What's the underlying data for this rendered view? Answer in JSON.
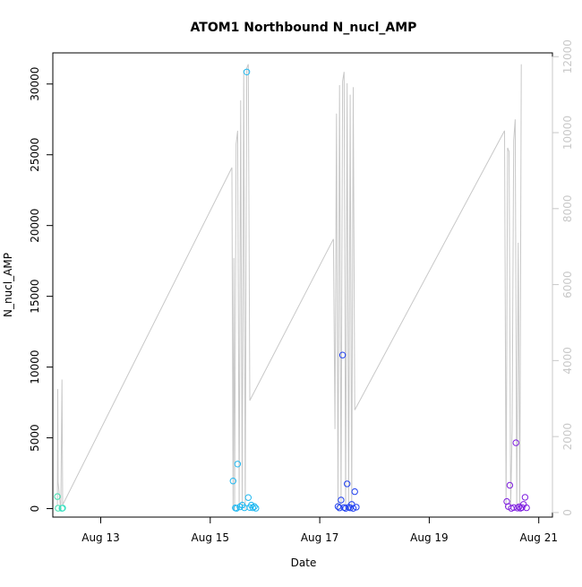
{
  "chart_data": {
    "type": "scatter",
    "title": "ATOM1 Northbound N_nucl_AMP",
    "xlabel": "Date",
    "ylabel": "N_nucl_AMP",
    "x_axis": {
      "type": "date",
      "range": [
        "2024-08-12T03:00",
        "2024-08-21T06:00"
      ],
      "ticks": [
        {
          "date": "2024-08-13",
          "label": "Aug 13"
        },
        {
          "date": "2024-08-15",
          "label": "Aug 15"
        },
        {
          "date": "2024-08-17",
          "label": "Aug 17"
        },
        {
          "date": "2024-08-19",
          "label": "Aug 19"
        },
        {
          "date": "2024-08-21",
          "label": "Aug 21"
        }
      ]
    },
    "y_axis": {
      "range": [
        -600,
        32200
      ],
      "ticks": [
        0,
        5000,
        10000,
        15000,
        20000,
        25000,
        30000
      ]
    },
    "y2_axis": {
      "range": [
        -120,
        12100
      ],
      "ticks": [
        0,
        2000,
        4000,
        6000,
        8000,
        10000,
        12000
      ],
      "color": "#c8c8c8"
    },
    "grid": false,
    "colors": {
      "line": "#c8c8c8",
      "axis": "#000000"
    },
    "series": [
      {
        "kind": "points",
        "color_by_time": true,
        "points": [
          {
            "t": "2024-08-12T05:00",
            "y": 850,
            "color": "#40e0b0"
          },
          {
            "t": "2024-08-12T05:20",
            "y": 30,
            "color": "#40e0b0"
          },
          {
            "t": "2024-08-12T07:00",
            "y": 20,
            "color": "#38e0c0"
          },
          {
            "t": "2024-08-12T07:20",
            "y": 40,
            "color": "#38e0c0"
          },
          {
            "t": "2024-08-15T10:00",
            "y": 1950,
            "color": "#20b8f0"
          },
          {
            "t": "2024-08-15T11:00",
            "y": 50,
            "color": "#20b8f0"
          },
          {
            "t": "2024-08-15T11:30",
            "y": 20,
            "color": "#20b8f0"
          },
          {
            "t": "2024-08-15T12:00",
            "y": 3150,
            "color": "#20b8f0"
          },
          {
            "t": "2024-08-15T13:00",
            "y": 120,
            "color": "#20b8f0"
          },
          {
            "t": "2024-08-15T14:00",
            "y": 250,
            "color": "#20b8f0"
          },
          {
            "t": "2024-08-15T15:00",
            "y": 60,
            "color": "#20b8f0"
          },
          {
            "t": "2024-08-15T16:00",
            "y": 30850,
            "color": "#20b8f0"
          },
          {
            "t": "2024-08-15T16:40",
            "y": 780,
            "color": "#20b8f0"
          },
          {
            "t": "2024-08-15T17:20",
            "y": 80,
            "color": "#20b8f0"
          },
          {
            "t": "2024-08-15T18:00",
            "y": 250,
            "color": "#20b8f0"
          },
          {
            "t": "2024-08-15T18:40",
            "y": 60,
            "color": "#20b8f0"
          },
          {
            "t": "2024-08-15T19:20",
            "y": 150,
            "color": "#20b8f0"
          },
          {
            "t": "2024-08-15T20:00",
            "y": 30,
            "color": "#20b8f0"
          },
          {
            "t": "2024-08-17T08:00",
            "y": 150,
            "color": "#2040f0"
          },
          {
            "t": "2024-08-17T08:40",
            "y": 50,
            "color": "#2040f0"
          },
          {
            "t": "2024-08-17T09:20",
            "y": 600,
            "color": "#2040f0"
          },
          {
            "t": "2024-08-17T10:00",
            "y": 10850,
            "color": "#2040f0"
          },
          {
            "t": "2024-08-17T10:40",
            "y": 80,
            "color": "#2040f0"
          },
          {
            "t": "2024-08-17T11:20",
            "y": 20,
            "color": "#2040f0"
          },
          {
            "t": "2024-08-17T12:00",
            "y": 1750,
            "color": "#2040f0"
          },
          {
            "t": "2024-08-17T12:40",
            "y": 100,
            "color": "#2040f0"
          },
          {
            "t": "2024-08-17T13:20",
            "y": 50,
            "color": "#2040f0"
          },
          {
            "t": "2024-08-17T14:00",
            "y": 300,
            "color": "#2040f0"
          },
          {
            "t": "2024-08-17T14:40",
            "y": 20,
            "color": "#2040f0"
          },
          {
            "t": "2024-08-17T15:20",
            "y": 1200,
            "color": "#2040f0"
          },
          {
            "t": "2024-08-17T16:00",
            "y": 100,
            "color": "#2040f0"
          },
          {
            "t": "2024-08-20T10:00",
            "y": 500,
            "color": "#8020e0"
          },
          {
            "t": "2024-08-20T10:40",
            "y": 150,
            "color": "#8020e0"
          },
          {
            "t": "2024-08-20T11:20",
            "y": 1650,
            "color": "#8020e0"
          },
          {
            "t": "2024-08-20T12:00",
            "y": 20,
            "color": "#8020e0"
          },
          {
            "t": "2024-08-20T13:00",
            "y": 80,
            "color": "#8020e0"
          },
          {
            "t": "2024-08-20T14:00",
            "y": 4650,
            "color": "#8020e0"
          },
          {
            "t": "2024-08-20T14:40",
            "y": 40,
            "color": "#8020e0"
          },
          {
            "t": "2024-08-20T15:20",
            "y": 120,
            "color": "#8020e0"
          },
          {
            "t": "2024-08-20T16:00",
            "y": 30,
            "color": "#8020e0"
          },
          {
            "t": "2024-08-20T16:40",
            "y": 80,
            "color": "#8020e0"
          },
          {
            "t": "2024-08-20T17:20",
            "y": 300,
            "color": "#8020e0"
          },
          {
            "t": "2024-08-20T18:00",
            "y": 800,
            "color": "#8020e0"
          },
          {
            "t": "2024-08-20T18:40",
            "y": 60,
            "color": "#8020e0"
          }
        ]
      },
      {
        "kind": "line",
        "axis": "y2",
        "color": "#c8c8c8",
        "points": [
          [
            "2024-08-12T05:00",
            200
          ],
          [
            "2024-08-12T05:10",
            3250
          ],
          [
            "2024-08-12T05:20",
            800
          ],
          [
            "2024-08-12T06:30",
            50
          ],
          [
            "2024-08-12T07:00",
            3500
          ],
          [
            "2024-08-12T07:20",
            200
          ],
          [
            "2024-08-15T09:30",
            9080
          ],
          [
            "2024-08-15T10:00",
            100
          ],
          [
            "2024-08-15T10:20",
            6700
          ],
          [
            "2024-08-15T10:40",
            60
          ],
          [
            "2024-08-15T11:20",
            9700
          ],
          [
            "2024-08-15T12:00",
            10050
          ],
          [
            "2024-08-15T12:40",
            100
          ],
          [
            "2024-08-15T13:20",
            10850
          ],
          [
            "2024-08-15T14:00",
            80
          ],
          [
            "2024-08-15T14:40",
            11650
          ],
          [
            "2024-08-15T15:20",
            80
          ],
          [
            "2024-08-15T16:00",
            11700
          ],
          [
            "2024-08-15T16:40",
            11800
          ],
          [
            "2024-08-15T17:20",
            2950
          ],
          [
            "2024-08-17T06:00",
            7200
          ],
          [
            "2024-08-17T06:40",
            2200
          ],
          [
            "2024-08-17T07:20",
            10500
          ],
          [
            "2024-08-17T08:00",
            40
          ],
          [
            "2024-08-17T08:40",
            11250
          ],
          [
            "2024-08-17T09:20",
            60
          ],
          [
            "2024-08-17T10:00",
            11350
          ],
          [
            "2024-08-17T10:40",
            11600
          ],
          [
            "2024-08-17T11:20",
            60
          ],
          [
            "2024-08-17T12:00",
            11300
          ],
          [
            "2024-08-17T12:40",
            60
          ],
          [
            "2024-08-17T13:20",
            11000
          ],
          [
            "2024-08-17T14:00",
            50
          ],
          [
            "2024-08-17T14:40",
            11200
          ],
          [
            "2024-08-17T15:20",
            2700
          ],
          [
            "2024-08-20T09:00",
            10050
          ],
          [
            "2024-08-20T09:40",
            100
          ],
          [
            "2024-08-20T10:20",
            9600
          ],
          [
            "2024-08-20T11:00",
            9500
          ],
          [
            "2024-08-20T11:40",
            80
          ],
          [
            "2024-08-20T12:20",
            2200
          ],
          [
            "2024-08-20T13:00",
            9800
          ],
          [
            "2024-08-20T13:40",
            10350
          ],
          [
            "2024-08-20T14:20",
            80
          ],
          [
            "2024-08-20T15:00",
            7100
          ],
          [
            "2024-08-20T15:40",
            60
          ],
          [
            "2024-08-20T16:20",
            11800
          ]
        ]
      }
    ]
  }
}
